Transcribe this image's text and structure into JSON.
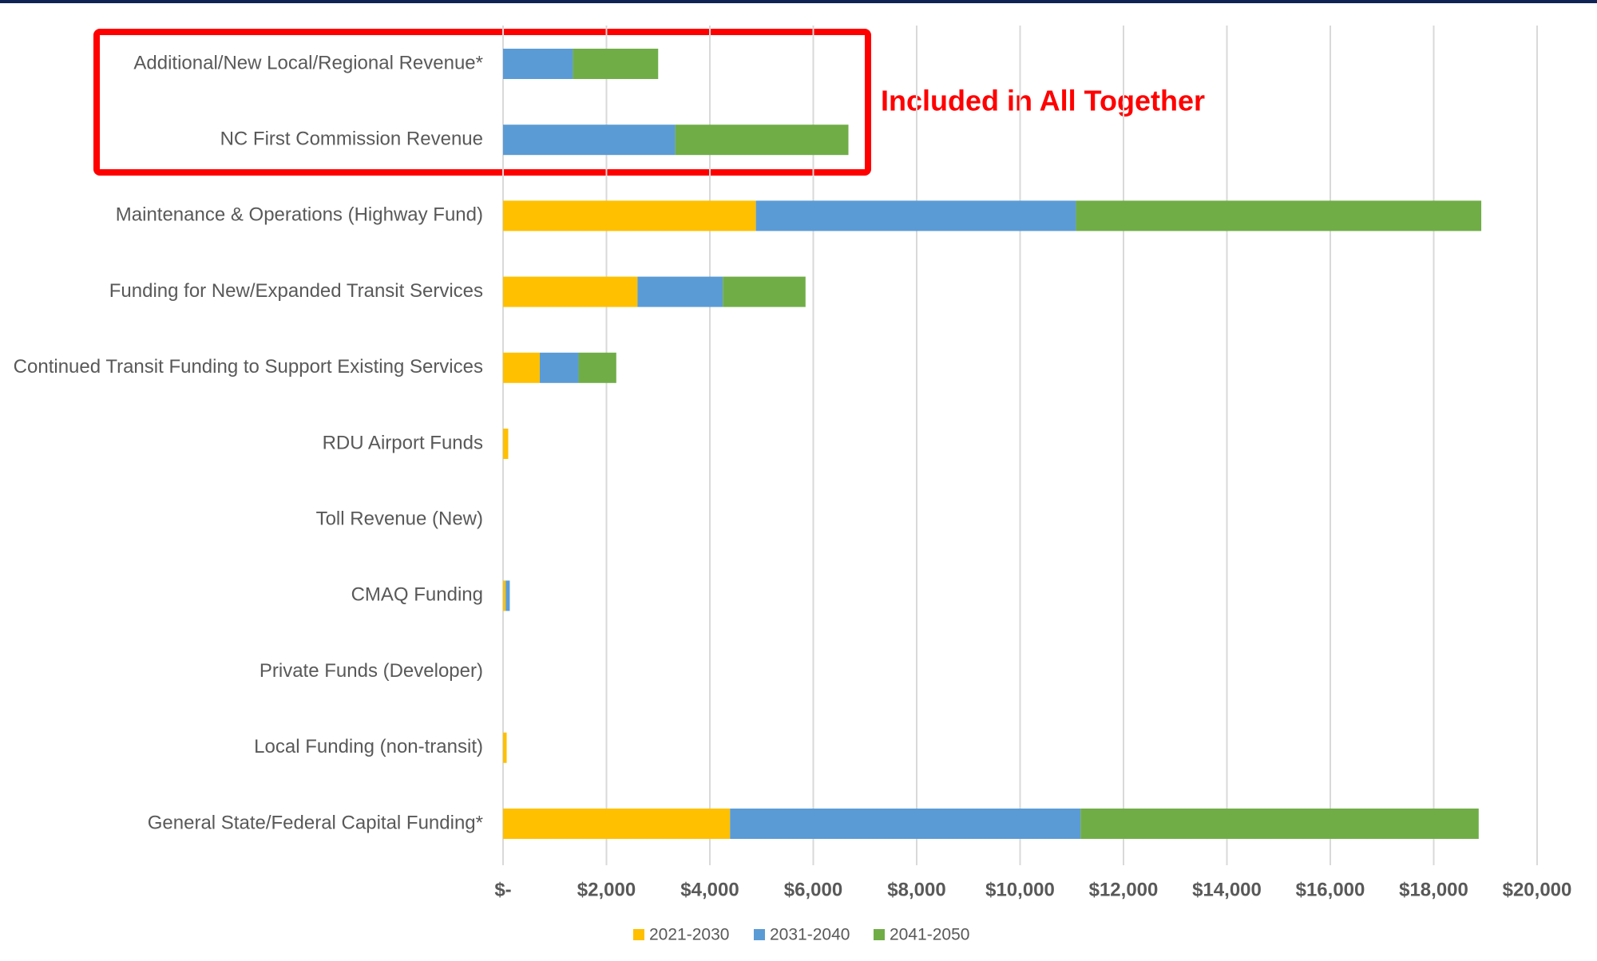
{
  "chart_data": {
    "type": "stacked-barh",
    "annotation": "Included in All Together",
    "categories": [
      "Additional/New Local/Regional Revenue*",
      "NC First Commission Revenue",
      "Maintenance & Operations (Highway Fund)",
      "Funding for New/Expanded Transit Services",
      "Continued Transit Funding to Support Existing Services",
      "RDU Airport Funds",
      "Toll Revenue (New)",
      "CMAQ Funding",
      "Private Funds (Developer)",
      "Local Funding (non-transit)",
      "General State/Federal Capital Funding*"
    ],
    "series": [
      {
        "name": "2021-2030",
        "color": "#ffc000",
        "values": [
          0,
          0,
          4890,
          2600,
          710,
          100,
          0,
          50,
          0,
          70,
          4390
        ]
      },
      {
        "name": "2031-2040",
        "color": "#5b9bd5",
        "values": [
          1350,
          3330,
          6190,
          1650,
          750,
          0,
          0,
          80,
          0,
          0,
          6780
        ]
      },
      {
        "name": "2041-2050",
        "color": "#70ad47",
        "values": [
          1650,
          3350,
          7840,
          1600,
          730,
          0,
          0,
          0,
          0,
          0,
          7700
        ]
      }
    ],
    "xlim": [
      0,
      20000
    ],
    "xticks": [
      {
        "value": 0,
        "label": "$-"
      },
      {
        "value": 2000,
        "label": "$2,000"
      },
      {
        "value": 4000,
        "label": "$4,000"
      },
      {
        "value": 6000,
        "label": "$6,000"
      },
      {
        "value": 8000,
        "label": "$8,000"
      },
      {
        "value": 10000,
        "label": "$10,000"
      },
      {
        "value": 12000,
        "label": "$12,000"
      },
      {
        "value": 14000,
        "label": "$14,000"
      },
      {
        "value": 16000,
        "label": "$16,000"
      },
      {
        "value": 18000,
        "label": "$18,000"
      },
      {
        "value": 20000,
        "label": "$20,000"
      }
    ],
    "grid": true,
    "legend": "bottom"
  }
}
